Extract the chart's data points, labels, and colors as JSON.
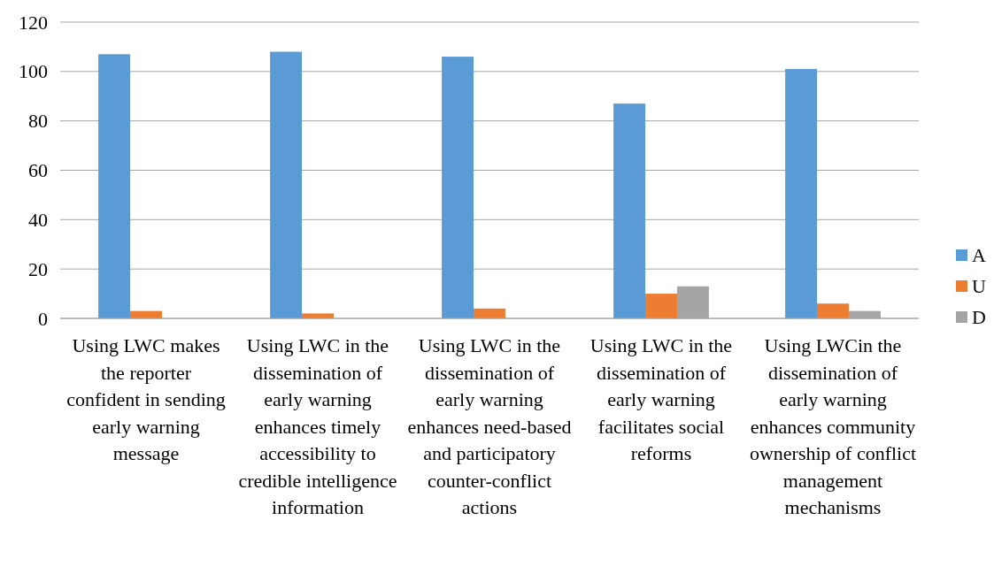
{
  "chart_data": {
    "type": "bar",
    "categories": [
      "Using LWC makes the reporter confident in sending early warning message",
      "Using LWC in the dissemination of early warning enhances timely accessibility to credible intelligence information",
      "Using LWC in the dissemination of early warning enhances need-based and participatory counter-conflict actions",
      "Using LWC in the dissemination of early warning facilitates social reforms",
      "Using LWCin the dissemination of early warning enhances community ownership of conflict management mechanisms"
    ],
    "series": [
      {
        "name": "A",
        "color": "#5b9bd5",
        "values": [
          107,
          108,
          106,
          87,
          101
        ]
      },
      {
        "name": "U",
        "color": "#ed7d31",
        "values": [
          3,
          2,
          4,
          10,
          6
        ]
      },
      {
        "name": "D",
        "color": "#a5a5a5",
        "values": [
          0,
          0,
          0,
          13,
          3
        ]
      }
    ],
    "ylim": [
      0,
      120
    ],
    "yticks": [
      0,
      20,
      40,
      60,
      80,
      100,
      120
    ],
    "grid": "y",
    "legend": "right"
  }
}
